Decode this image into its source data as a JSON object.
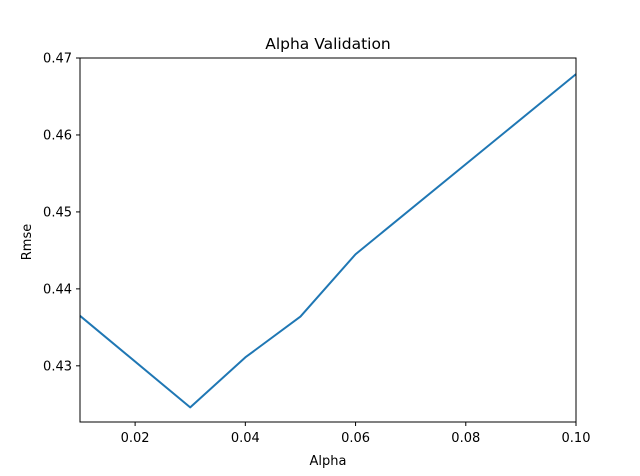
{
  "chart_data": {
    "type": "line",
    "title": "Alpha Validation",
    "xlabel": "Alpha",
    "ylabel": "Rmse",
    "xlim": [
      0.01,
      0.1
    ],
    "ylim": [
      0.4227,
      0.47
    ],
    "xticks": [
      0.02,
      0.04,
      0.06,
      0.08,
      0.1
    ],
    "xtick_labels": [
      "0.02",
      "0.04",
      "0.06",
      "0.08",
      "0.10"
    ],
    "yticks": [
      0.43,
      0.44,
      0.45,
      0.46,
      0.47
    ],
    "ytick_labels": [
      "0.43",
      "0.44",
      "0.45",
      "0.46",
      "0.47"
    ],
    "grid": false,
    "series": [
      {
        "color": "#1f77b4",
        "x": [
          0.01,
          0.03,
          0.04,
          0.05,
          0.06,
          0.1
        ],
        "y": [
          0.4365,
          0.4246,
          0.4311,
          0.4364,
          0.4445,
          0.4679
        ]
      }
    ]
  }
}
